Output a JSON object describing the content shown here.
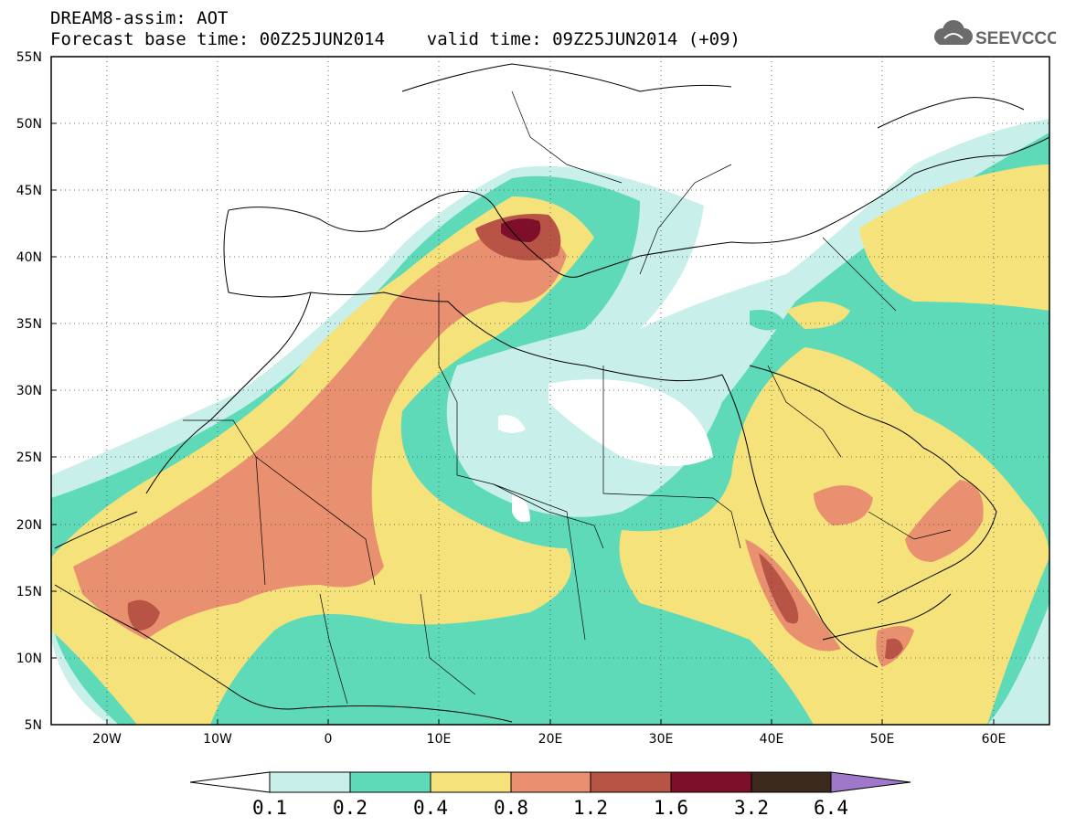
{
  "header": {
    "line1": "DREAM8-assim: AOT",
    "line2": "Forecast base time: 00Z25JUN2014    valid time: 09Z25JUN2014 (+09)"
  },
  "logo": {
    "icon": "cloud-icon",
    "text": "SEEVCCC",
    "color": "#666666"
  },
  "map": {
    "lat_labels": [
      "55N",
      "50N",
      "45N",
      "40N",
      "35N",
      "30N",
      "25N",
      "20N",
      "15N",
      "10N",
      "5N"
    ],
    "lon_labels": [
      "20W",
      "10W",
      "0",
      "10E",
      "20E",
      "30E",
      "40E",
      "50E",
      "60E"
    ],
    "lat_range": [
      5,
      55
    ],
    "lon_range": [
      -25,
      65
    ],
    "gridlines": "dotted"
  },
  "colorbar": {
    "labels": [
      "0.1",
      "0.2",
      "0.4",
      "0.8",
      "1.2",
      "1.6",
      "3.2",
      "6.4"
    ],
    "colors": [
      "#ffffff",
      "#c8efe9",
      "#5fdab8",
      "#f5e27a",
      "#e89070",
      "#b75446",
      "#7d0f2a",
      "#3b2a1b",
      "#9f78c9"
    ]
  }
}
